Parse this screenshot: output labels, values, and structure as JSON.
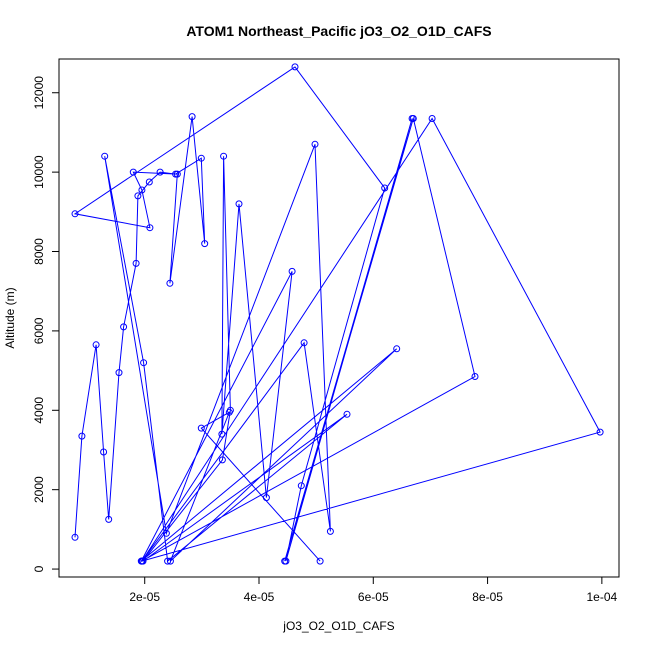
{
  "chart_data": {
    "type": "line",
    "title": "ATOM1 Northeast_Pacific jO3_O2_O1D_CAFS",
    "xlabel": "jO3_O2_O1D_CAFS",
    "ylabel": "Altitude (m)",
    "xlim": [
      5e-06,
      0.000103
    ],
    "ylim": [
      -200,
      12850
    ],
    "x_ticks": [
      {
        "value": 2e-05,
        "label": "2e-05"
      },
      {
        "value": 4e-05,
        "label": "4e-05"
      },
      {
        "value": 6e-05,
        "label": "6e-05"
      },
      {
        "value": 8e-05,
        "label": "8e-05"
      },
      {
        "value": 0.0001,
        "label": "1e-04"
      }
    ],
    "y_ticks": [
      {
        "value": 0,
        "label": "0"
      },
      {
        "value": 2000,
        "label": "2000"
      },
      {
        "value": 4000,
        "label": "4000"
      },
      {
        "value": 6000,
        "label": "6000"
      },
      {
        "value": 8000,
        "label": "8000"
      },
      {
        "value": 10000,
        "label": "10000"
      },
      {
        "value": 12000,
        "label": "12000"
      }
    ],
    "grid": false,
    "series": [
      {
        "color": "#0000ff",
        "marker": "open-circle",
        "x": [
          7.8e-06,
          9e-06,
          1.15e-05,
          1.28e-05,
          1.37e-05,
          1.55e-05,
          1.63e-05,
          1.85e-05,
          1.88e-05,
          2.08e-05,
          2.27e-05,
          2.54e-05,
          2.99e-05,
          3.05e-05,
          2.83e-05,
          2.44e-05,
          2.57e-05,
          1.8e-05,
          1.95e-05,
          2.09e-05,
          7.8e-06,
          4.63e-05,
          6.2e-05,
          4.74e-05,
          4.47e-05,
          6.68e-05,
          4.45e-05,
          6.7e-05,
          7.78e-05,
          1.95e-05,
          7.03e-05,
          9.97e-05,
          1.95e-05,
          4.79e-05,
          5.25e-05,
          4.98e-05,
          2.38e-05,
          1.3e-05,
          1.98e-05,
          2.4e-05,
          5.54e-05,
          1.97e-05,
          3.36e-05,
          3.5e-05,
          3.38e-05,
          3.35e-05,
          3.65e-05,
          4.13e-05,
          4.58e-05,
          1.94e-05,
          6.41e-05,
          2.45e-05,
          3.48e-05,
          2.99e-05,
          5.07e-05
        ],
        "y": [
          800,
          3350,
          5650,
          2950,
          1250,
          4950,
          6100,
          7700,
          9400,
          9750,
          10000,
          9950,
          10350,
          8200,
          11400,
          7200,
          9950,
          10000,
          9550,
          8600,
          8950,
          12650,
          9600,
          2100,
          200,
          11350,
          200,
          11350,
          4850,
          200,
          11350,
          3450,
          200,
          5700,
          950,
          10700,
          900,
          10400,
          5200,
          200,
          3900,
          200,
          2750,
          4000,
          10400,
          3400,
          9200,
          1800,
          7500,
          200,
          5550,
          200,
          3950,
          3550,
          200
        ]
      }
    ]
  }
}
